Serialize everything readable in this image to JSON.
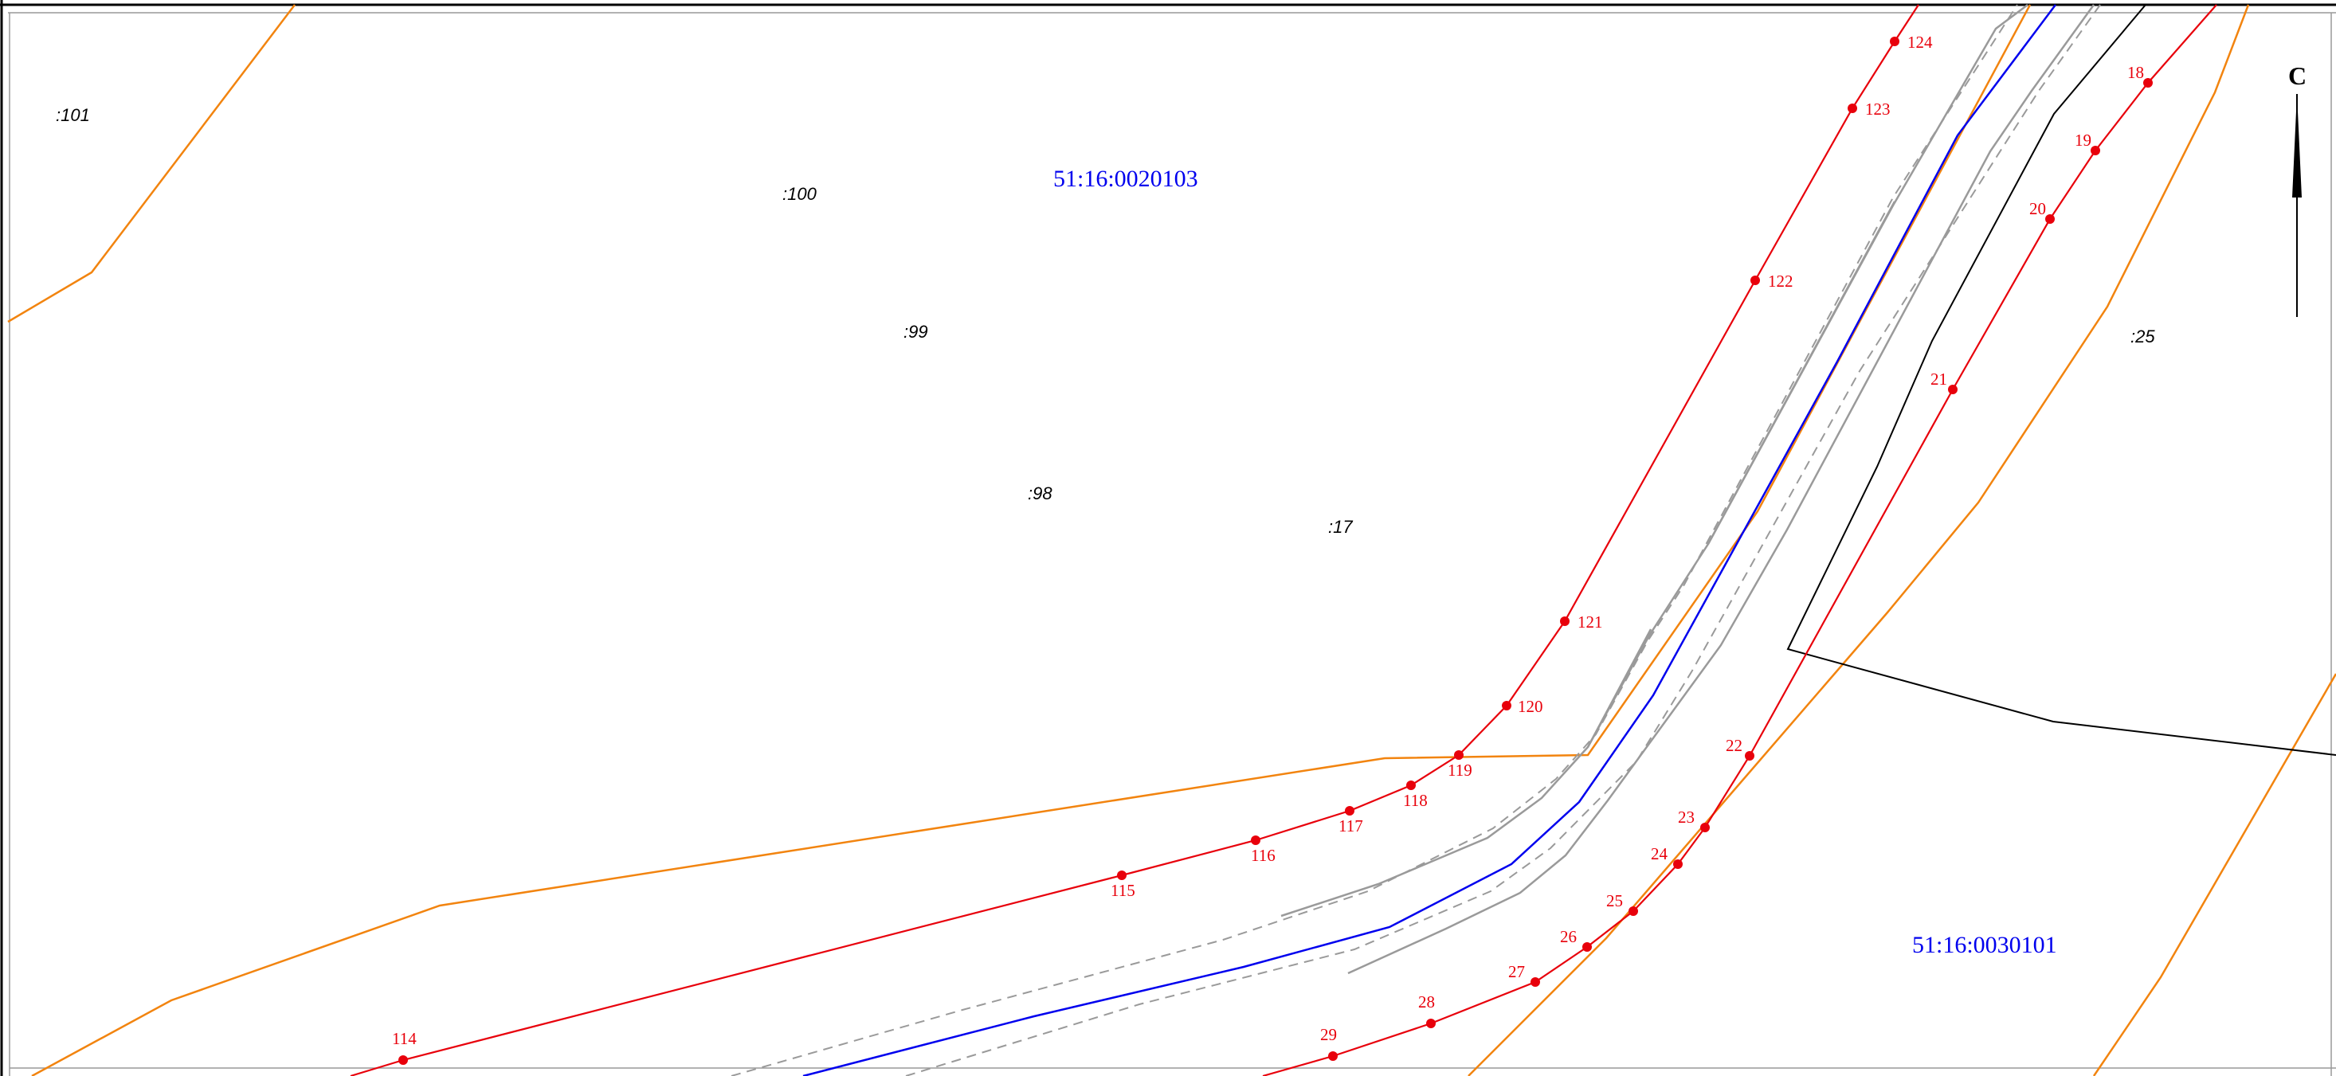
{
  "map": {
    "colors": {
      "boundary": "#e8000b",
      "zone": "#f2840f",
      "road_axis": "#0000ee",
      "road_edge": "#9a9a9a",
      "cadastral": "#000000",
      "block_label": "#0000ee",
      "point_label": "#e8000b",
      "parcel_label": "#000000",
      "frame": "#000000"
    },
    "block_labels": [
      "51:16:0020103",
      "51:16:0030101"
    ],
    "parcel_labels": [
      ":101",
      ":100",
      ":99",
      ":98",
      ":17",
      ":25"
    ],
    "north_arrow": {
      "letter": "С"
    },
    "points_upper": [
      "114",
      "115",
      "116",
      "117",
      "118",
      "119",
      "120",
      "121",
      "122",
      "123",
      "124"
    ],
    "points_lower": [
      "18",
      "19",
      "20",
      "21",
      "22",
      "23",
      "24",
      "25",
      "26",
      "27",
      "28",
      "29"
    ]
  }
}
